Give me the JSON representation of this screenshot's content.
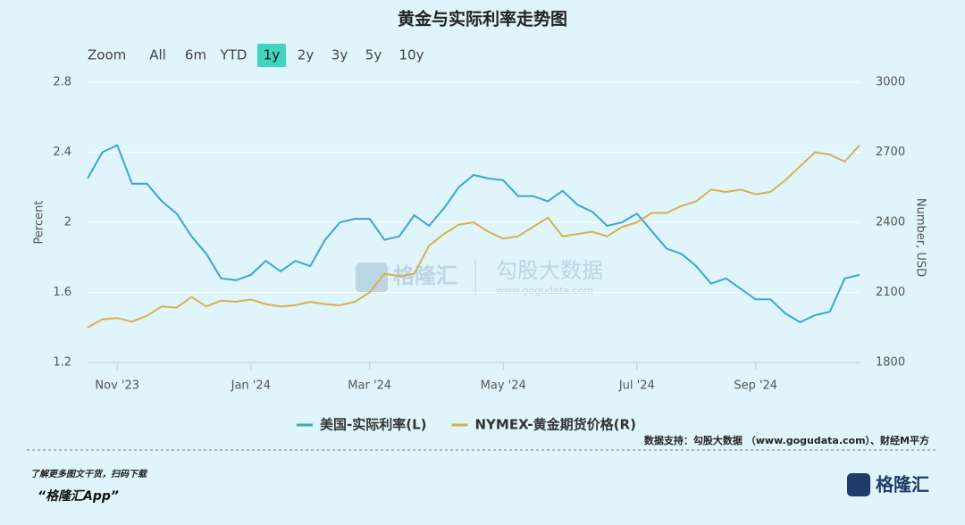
{
  "chart_data": {
    "type": "line",
    "title": "黄金与实际利率走势图",
    "range_selector": {
      "label": "Zoom",
      "buttons": [
        "All",
        "6m",
        "YTD",
        "1y",
        "2y",
        "3y",
        "5y",
        "10y"
      ],
      "selected": "1y"
    },
    "categories": [
      null,
      null,
      "Nov '23",
      null,
      null,
      null,
      null,
      null,
      null,
      null,
      null,
      "Jan '24",
      null,
      null,
      null,
      null,
      null,
      null,
      null,
      "Mar '24",
      null,
      null,
      null,
      null,
      null,
      null,
      null,
      null,
      "May '24",
      null,
      null,
      null,
      null,
      null,
      null,
      null,
      null,
      "Jul '24",
      null,
      null,
      null,
      null,
      null,
      null,
      null,
      "Sep '24",
      null,
      null,
      null,
      null,
      null,
      null,
      null
    ],
    "series": [
      {
        "name": "美国-实际利率(L)",
        "color": "#3aa6d0",
        "axis": "y",
        "values": [
          2.25,
          2.4,
          2.44,
          2.22,
          2.22,
          2.12,
          2.05,
          1.92,
          1.82,
          1.68,
          1.67,
          1.7,
          1.78,
          1.72,
          1.78,
          1.75,
          1.9,
          2.0,
          2.02,
          2.02,
          1.9,
          1.92,
          2.04,
          1.98,
          2.08,
          2.2,
          2.27,
          2.25,
          2.24,
          2.15,
          2.15,
          2.12,
          2.18,
          2.1,
          2.06,
          1.98,
          2.0,
          2.05,
          1.95,
          1.85,
          1.82,
          1.75,
          1.65,
          1.68,
          1.62,
          1.56,
          1.56,
          1.48,
          1.43,
          1.47,
          1.49,
          1.68,
          1.7
        ]
      },
      {
        "name": "NYMEX-黄金期货价格(R)",
        "color": "#d4b24c",
        "axis": "y2",
        "values": [
          1950,
          1985,
          1990,
          1975,
          2000,
          2040,
          2035,
          2080,
          2040,
          2065,
          2060,
          2070,
          2050,
          2040,
          2045,
          2060,
          2050,
          2045,
          2060,
          2100,
          2180,
          2170,
          2180,
          2300,
          2350,
          2390,
          2400,
          2360,
          2330,
          2340,
          2380,
          2420,
          2340,
          2350,
          2360,
          2340,
          2380,
          2400,
          2440,
          2440,
          2470,
          2490,
          2540,
          2530,
          2540,
          2520,
          2530,
          2580,
          2640,
          2700,
          2690,
          2660,
          2730
        ]
      }
    ],
    "ylabel": "Percent",
    "ylim": [
      1.2,
      2.8
    ],
    "yticks": [
      1.2,
      1.6,
      2,
      2.4,
      2.8
    ],
    "y2label": "Number, USD",
    "y2lim": [
      1800,
      3000
    ],
    "y2ticks": [
      1800,
      2100,
      2400,
      2700,
      3000
    ],
    "grid": true,
    "legend": "bottom"
  },
  "watermark": {
    "brand": "格隆汇",
    "name": "勾股大数据",
    "site": "www.gogudata.com"
  },
  "footer": {
    "source": "数据支持：勾股大数据 （www.gogudata.com）、财经M平方",
    "tip": "了解更多图文干货，扫码下载",
    "app": "“格隆汇App”",
    "logo": "格隆汇"
  }
}
